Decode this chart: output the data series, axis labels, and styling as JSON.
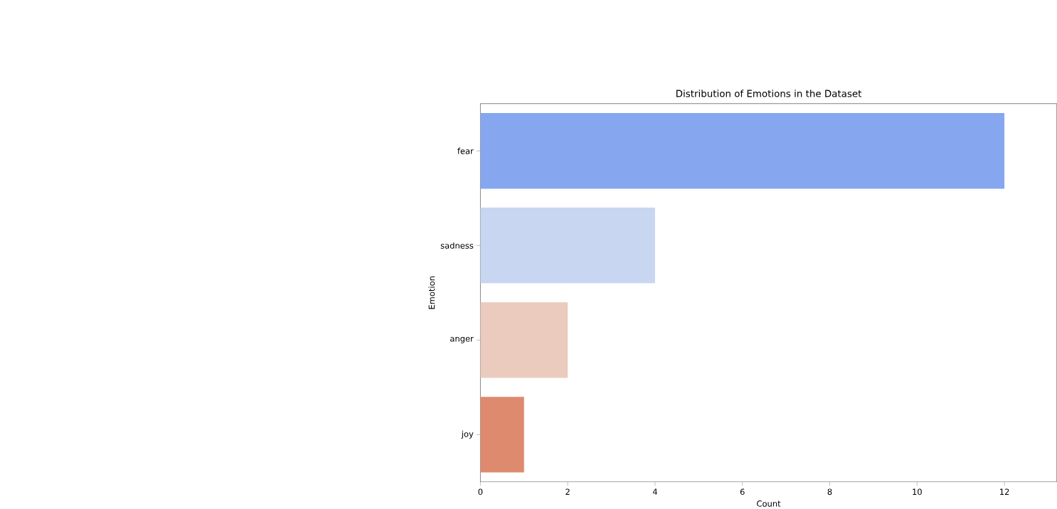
{
  "chart_data": {
    "type": "bar",
    "orientation": "horizontal",
    "title": "Distribution of Emotions in the Dataset",
    "xlabel": "Count",
    "ylabel": "Emotion",
    "categories": [
      "fear",
      "sadness",
      "anger",
      "joy"
    ],
    "values": [
      12,
      4,
      2,
      1
    ],
    "colors": [
      "#86a7ef",
      "#c8d6f1",
      "#eacbbd",
      "#dd8a6e"
    ],
    "xlim": [
      0,
      13.2
    ],
    "xticks": [
      0,
      2,
      4,
      6,
      8,
      10,
      12
    ]
  }
}
